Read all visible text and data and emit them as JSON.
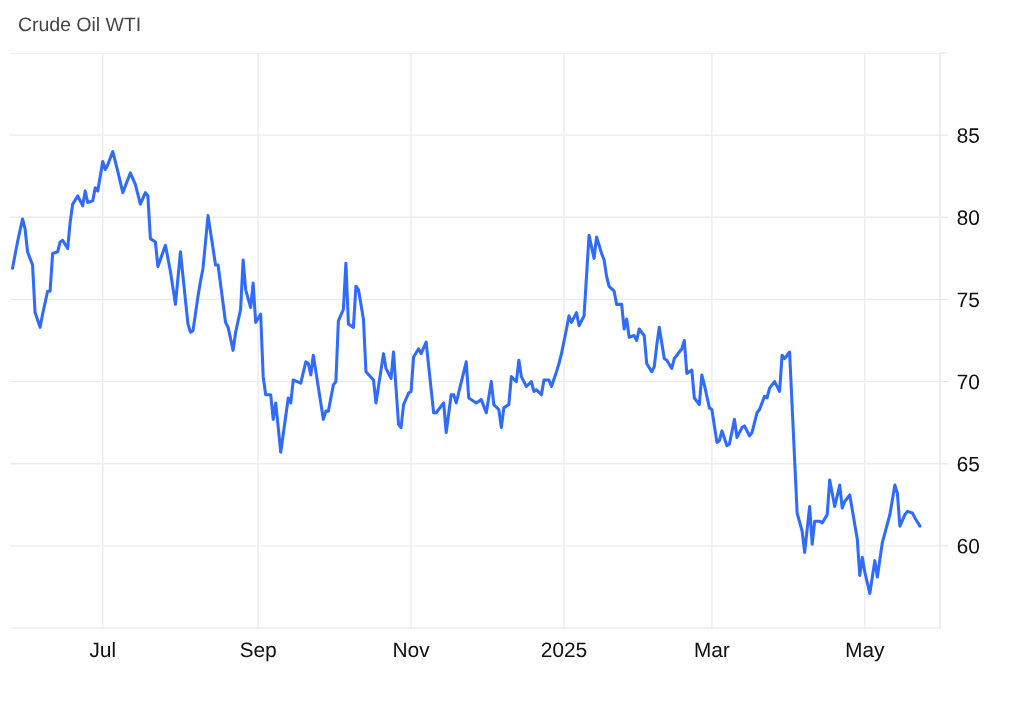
{
  "chart_data": {
    "type": "line",
    "title": "Crude Oil WTI",
    "x": [
      "2024-05-26",
      "2024-05-28",
      "2024-05-30",
      "2024-05-31",
      "2024-06-01",
      "2024-06-03",
      "2024-06-04",
      "2024-06-06",
      "2024-06-07",
      "2024-06-09",
      "2024-06-10",
      "2024-06-11",
      "2024-06-13",
      "2024-06-14",
      "2024-06-15",
      "2024-06-17",
      "2024-06-18",
      "2024-06-19",
      "2024-06-21",
      "2024-06-23",
      "2024-06-24",
      "2024-06-25",
      "2024-06-27",
      "2024-06-28",
      "2024-06-29",
      "2024-07-01",
      "2024-07-02",
      "2024-07-03",
      "2024-07-05",
      "2024-07-07",
      "2024-07-09",
      "2024-07-12",
      "2024-07-14",
      "2024-07-16",
      "2024-07-18",
      "2024-07-19",
      "2024-07-20",
      "2024-07-22",
      "2024-07-23",
      "2024-07-26",
      "2024-07-28",
      "2024-07-30",
      "2024-08-01",
      "2024-08-02",
      "2024-08-04",
      "2024-08-05",
      "2024-08-06",
      "2024-08-08",
      "2024-08-09",
      "2024-08-10",
      "2024-08-12",
      "2024-08-15",
      "2024-08-16",
      "2024-08-19",
      "2024-08-20",
      "2024-08-22",
      "2024-08-23",
      "2024-08-25",
      "2024-08-26",
      "2024-08-27",
      "2024-08-29",
      "2024-08-30",
      "2024-08-31",
      "2024-09-02",
      "2024-09-03",
      "2024-09-04",
      "2024-09-06",
      "2024-09-07",
      "2024-09-08",
      "2024-09-10",
      "2024-09-13",
      "2024-09-14",
      "2024-09-15",
      "2024-09-18",
      "2024-09-20",
      "2024-09-21",
      "2024-09-22",
      "2024-09-23",
      "2024-09-27",
      "2024-09-28",
      "2024-09-29",
      "2024-10-01",
      "2024-10-02",
      "2024-10-03",
      "2024-10-05",
      "2024-10-06",
      "2024-10-07",
      "2024-10-09",
      "2024-10-10",
      "2024-10-11",
      "2024-10-13",
      "2024-10-14",
      "2024-10-17",
      "2024-10-18",
      "2024-10-21",
      "2024-10-22",
      "2024-10-24",
      "2024-10-25",
      "2024-10-27",
      "2024-10-28",
      "2024-10-29",
      "2024-10-31",
      "2024-11-01",
      "2024-11-02",
      "2024-11-04",
      "2024-11-05",
      "2024-11-07",
      "2024-11-10",
      "2024-11-11",
      "2024-11-14",
      "2024-11-15",
      "2024-11-17",
      "2024-11-18",
      "2024-11-19",
      "2024-11-23",
      "2024-11-24",
      "2024-11-27",
      "2024-11-29",
      "2024-12-01",
      "2024-12-03",
      "2024-12-04",
      "2024-12-06",
      "2024-12-07",
      "2024-12-08",
      "2024-12-10",
      "2024-12-11",
      "2024-12-13",
      "2024-12-14",
      "2024-12-15",
      "2024-12-17",
      "2024-12-19",
      "2024-12-20",
      "2024-12-21",
      "2024-12-23",
      "2024-12-24",
      "2024-12-26",
      "2024-12-27",
      "2024-12-29",
      "2024-12-30",
      "2024-12-31",
      "2025-01-02",
      "2025-01-03",
      "2025-01-04",
      "2025-01-06",
      "2025-01-07",
      "2025-01-09",
      "2025-01-11",
      "2025-01-13",
      "2025-01-14",
      "2025-01-16",
      "2025-01-17",
      "2025-01-18",
      "2025-01-19",
      "2025-01-21",
      "2025-01-22",
      "2025-01-24",
      "2025-01-25",
      "2025-01-26",
      "2025-01-27",
      "2025-01-29",
      "2025-01-30",
      "2025-01-31",
      "2025-02-02",
      "2025-02-03",
      "2025-02-05",
      "2025-02-06",
      "2025-02-07",
      "2025-02-08",
      "2025-02-10",
      "2025-02-11",
      "2025-02-13",
      "2025-02-14",
      "2025-02-16",
      "2025-02-17",
      "2025-02-18",
      "2025-02-19",
      "2025-02-21",
      "2025-02-22",
      "2025-02-24",
      "2025-02-25",
      "2025-02-26",
      "2025-02-28",
      "2025-03-01",
      "2025-03-03",
      "2025-03-04",
      "2025-03-05",
      "2025-03-07",
      "2025-03-08",
      "2025-03-10",
      "2025-03-11",
      "2025-03-13",
      "2025-03-14",
      "2025-03-16",
      "2025-03-17",
      "2025-03-19",
      "2025-03-20",
      "2025-03-22",
      "2025-03-23",
      "2025-03-24",
      "2025-03-26",
      "2025-03-28",
      "2025-03-29",
      "2025-03-30",
      "2025-04-01",
      "2025-04-04",
      "2025-04-06",
      "2025-04-07",
      "2025-04-09",
      "2025-04-10",
      "2025-04-11",
      "2025-04-13",
      "2025-04-14",
      "2025-04-16",
      "2025-04-17",
      "2025-04-19",
      "2025-04-21",
      "2025-04-22",
      "2025-04-23",
      "2025-04-25",
      "2025-04-26",
      "2025-04-28",
      "2025-04-29",
      "2025-04-30",
      "2025-05-01",
      "2025-05-03",
      "2025-05-05",
      "2025-05-06",
      "2025-05-08",
      "2025-05-11",
      "2025-05-13",
      "2025-05-14",
      "2025-05-15",
      "2025-05-17",
      "2025-05-18",
      "2025-05-20",
      "2025-05-21",
      "2025-05-23"
    ],
    "series": [
      {
        "color": "#2f6bff",
        "values": [
          76.9,
          78.5,
          79.9,
          79.3,
          77.9,
          77.1,
          74.2,
          73.3,
          74.1,
          75.5,
          75.5,
          77.8,
          77.9,
          78.5,
          78.6,
          78.1,
          79.7,
          80.8,
          81.3,
          80.7,
          81.6,
          80.9,
          81.0,
          81.8,
          81.6,
          83.4,
          82.9,
          83.2,
          84.0,
          82.8,
          81.5,
          82.7,
          82.0,
          80.8,
          81.5,
          81.3,
          78.7,
          78.5,
          77.0,
          78.3,
          76.7,
          74.7,
          77.9,
          76.4,
          73.5,
          73.0,
          73.1,
          75.2,
          76.1,
          76.9,
          80.1,
          77.1,
          77.1,
          73.6,
          73.3,
          71.9,
          73.0,
          74.4,
          77.4,
          75.6,
          74.5,
          76.0,
          73.6,
          74.1,
          70.3,
          69.2,
          69.2,
          67.7,
          68.7,
          65.7,
          69.0,
          68.7,
          70.1,
          69.9,
          71.2,
          71.1,
          70.4,
          71.6,
          67.7,
          68.2,
          68.2,
          69.8,
          70.0,
          73.7,
          74.4,
          77.2,
          73.5,
          73.3,
          75.8,
          75.6,
          73.8,
          70.6,
          70.1,
          68.7,
          71.7,
          70.8,
          70.2,
          71.8,
          67.4,
          67.2,
          68.6,
          69.3,
          69.4,
          71.5,
          72.0,
          71.7,
          72.4,
          68.1,
          68.1,
          68.7,
          66.9,
          69.2,
          69.2,
          68.7,
          71.2,
          69.0,
          68.7,
          68.9,
          68.1,
          70.0,
          68.6,
          68.3,
          67.2,
          68.4,
          68.6,
          70.3,
          70.0,
          71.3,
          70.3,
          69.7,
          70.0,
          69.4,
          69.5,
          69.2,
          70.1,
          70.1,
          69.7,
          70.6,
          71.1,
          71.7,
          73.2,
          74.0,
          73.6,
          74.2,
          73.4,
          74.0,
          78.9,
          77.5,
          78.8,
          77.8,
          77.4,
          76.4,
          75.8,
          75.5,
          74.7,
          74.7,
          73.2,
          73.8,
          72.7,
          72.8,
          72.5,
          73.2,
          72.8,
          71.1,
          70.6,
          70.9,
          72.2,
          73.3,
          71.4,
          71.3,
          70.8,
          71.4,
          71.8,
          72.0,
          72.5,
          70.5,
          70.7,
          69.0,
          68.6,
          70.4,
          69.8,
          68.4,
          68.3,
          66.3,
          66.4,
          67.0,
          66.1,
          66.2,
          67.7,
          66.6,
          67.2,
          67.3,
          66.7,
          66.9,
          68.1,
          68.3,
          69.1,
          69.0,
          69.6,
          70.0,
          69.4,
          71.6,
          71.4,
          71.8,
          62.0,
          60.9,
          59.6,
          62.4,
          60.1,
          61.5,
          61.5,
          61.4,
          61.9,
          64.0,
          62.4,
          63.7,
          62.3,
          62.7,
          63.1,
          62.2,
          60.4,
          58.2,
          59.3,
          58.4,
          57.1,
          59.1,
          58.1,
          60.2,
          61.9,
          63.7,
          63.2,
          61.2,
          61.9,
          62.1,
          62.0,
          61.7,
          61.2
        ]
      }
    ],
    "xlim": [
      "2024-05-25",
      "2025-05-31"
    ],
    "xticks": [
      {
        "value": "2024-07-01",
        "label": "Jul"
      },
      {
        "value": "2024-09-01",
        "label": "Sep"
      },
      {
        "value": "2024-11-01",
        "label": "Nov"
      },
      {
        "value": "2025-01-01",
        "label": "2025"
      },
      {
        "value": "2025-03-01",
        "label": "Mar"
      },
      {
        "value": "2025-05-01",
        "label": "May"
      }
    ],
    "ylim": [
      55,
      90
    ],
    "yticks": [
      60,
      65,
      70,
      75,
      80,
      85,
      {
        "value": 90,
        "label": null
      }
    ],
    "grid": true,
    "marker": "none",
    "line_style": "solid"
  }
}
